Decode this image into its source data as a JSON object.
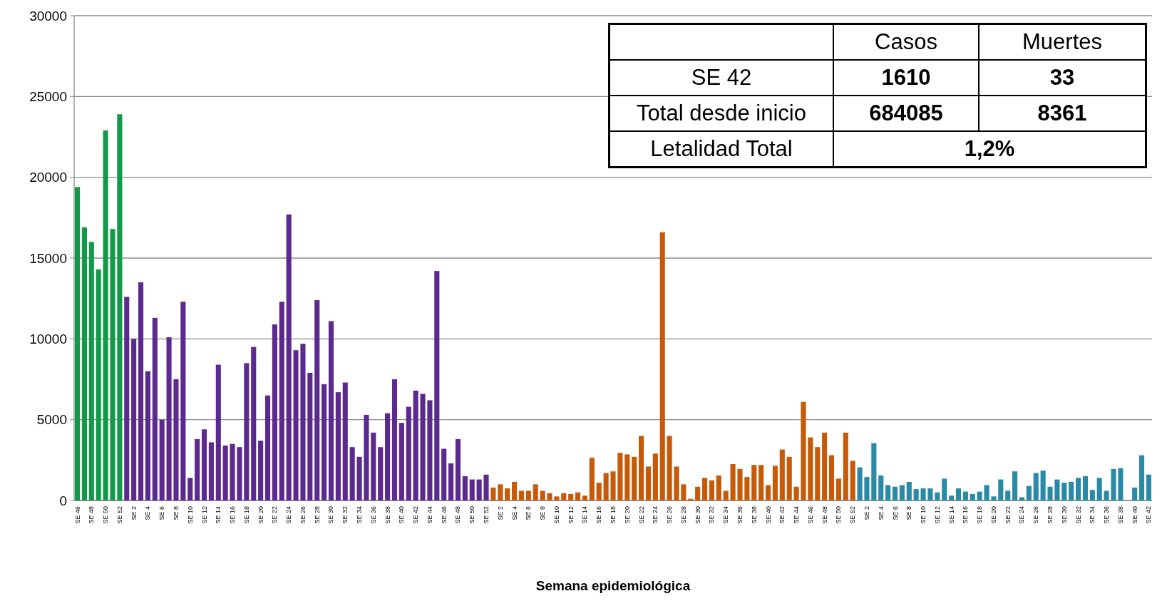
{
  "chart_data": {
    "type": "bar",
    "xlabel": "Semana epidemiológica",
    "annotations": [
      "Casos",
      "Muertes",
      "SE 42",
      "1610",
      "33",
      "Total desde inicio",
      "684085",
      "8361",
      "Letalidad Total",
      "1,2%"
    ],
    "categories": [
      "SE 46",
      null,
      "SE 48",
      null,
      "SE 50",
      null,
      "SE 52",
      null,
      "SE 2",
      null,
      "SE 4",
      null,
      "SE 6",
      null,
      "SE 8",
      null,
      "SE 10",
      null,
      "SE 12",
      null,
      "SE 14",
      null,
      "SE 16",
      null,
      "SE 18",
      null,
      "SE 20",
      null,
      "SE 22",
      null,
      "SE 24",
      null,
      "SE 26",
      null,
      "SE 28",
      null,
      "SE 30",
      null,
      "SE 32",
      null,
      "SE 34",
      null,
      "SE 36",
      null,
      "SE 38",
      null,
      "SE 40",
      null,
      "SE 42",
      null,
      "SE 44",
      null,
      "SE 46",
      null,
      "SE 48",
      null,
      "SE 50",
      null,
      "SE 52",
      null,
      "SE 2",
      null,
      "SE 4",
      null,
      "SE 6",
      null,
      "SE 8",
      null,
      "SE 10",
      null,
      "SE 12",
      null,
      "SE 14",
      null,
      "SE 16",
      null,
      "SE 18",
      null,
      "SE 20",
      null,
      "SE 22",
      null,
      "SE 24",
      null,
      "SE 26",
      null,
      "SE 28",
      null,
      "SE 30",
      null,
      "SE 32",
      null,
      "SE 34",
      null,
      "SE 36",
      null,
      "SE 38",
      null,
      "SE 40",
      null,
      "SE 42",
      null,
      "SE 44",
      null,
      "SE 46",
      null,
      "SE 48",
      null,
      "SE 50",
      null,
      "SE 52",
      null,
      "SE 2",
      null,
      "SE 4",
      null,
      "SE 6",
      null,
      "SE 8",
      null,
      "SE 10",
      null,
      "SE 12",
      null,
      "SE 14",
      null,
      "SE 16",
      null,
      "SE 18",
      null,
      "SE 20",
      null,
      "SE 22",
      null,
      "SE 24",
      null,
      "SE 26",
      null,
      "SE 28",
      null,
      "SE 30",
      null,
      "SE 32",
      null,
      "SE 34",
      null,
      "SE 36",
      null,
      "SE 38",
      null,
      "SE 40",
      null,
      "SE 42"
    ],
    "values": [
      19400,
      16900,
      16000,
      14300,
      22900,
      16800,
      23900,
      12600,
      10000,
      13500,
      8000,
      11300,
      5000,
      10100,
      7500,
      12300,
      1400,
      3800,
      4400,
      3600,
      8400,
      3400,
      3500,
      3300,
      8500,
      9500,
      3700,
      6500,
      10900,
      12300,
      17700,
      9300,
      9700,
      7900,
      12400,
      7200,
      11100,
      6700,
      7300,
      3300,
      2700,
      5300,
      4200,
      3300,
      5400,
      7500,
      4800,
      5800,
      6800,
      6600,
      6200,
      14200,
      3200,
      2300,
      3800,
      1500,
      1300,
      1300,
      1600,
      800,
      1000,
      750,
      1150,
      600,
      600,
      1000,
      600,
      450,
      250,
      450,
      400,
      500,
      300,
      2650,
      1100,
      1700,
      1800,
      2950,
      2850,
      2700,
      4000,
      2100,
      2900,
      16600,
      4000,
      2100,
      1000,
      100,
      850,
      1400,
      1250,
      1550,
      600,
      2250,
      1950,
      1450,
      2200,
      2200,
      950,
      2150,
      3150,
      2700,
      850,
      6100,
      3900,
      3300,
      4200,
      2800,
      1350,
      4200,
      2450,
      2050,
      1450,
      3550,
      1550,
      950,
      850,
      950,
      1150,
      700,
      750,
      750,
      500,
      1350,
      300,
      750,
      550,
      400,
      550,
      950,
      250,
      1300,
      600,
      1800,
      200,
      900,
      1700,
      1850,
      850,
      1300,
      1100,
      1150,
      1400,
      1500,
      650,
      1400,
      600,
      1950,
      2000,
      null,
      800,
      2800,
      1600
    ],
    "colors": [
      "#129a4a",
      "#129a4a",
      "#129a4a",
      "#129a4a",
      "#129a4a",
      "#129a4a",
      "#129a4a",
      "#5c2a8e",
      "#5c2a8e",
      "#5c2a8e",
      "#5c2a8e",
      "#5c2a8e",
      "#5c2a8e",
      "#5c2a8e",
      "#5c2a8e",
      "#5c2a8e",
      "#5c2a8e",
      "#5c2a8e",
      "#5c2a8e",
      "#5c2a8e",
      "#5c2a8e",
      "#5c2a8e",
      "#5c2a8e",
      "#5c2a8e",
      "#5c2a8e",
      "#5c2a8e",
      "#5c2a8e",
      "#5c2a8e",
      "#5c2a8e",
      "#5c2a8e",
      "#5c2a8e",
      "#5c2a8e",
      "#5c2a8e",
      "#5c2a8e",
      "#5c2a8e",
      "#5c2a8e",
      "#5c2a8e",
      "#5c2a8e",
      "#5c2a8e",
      "#5c2a8e",
      "#5c2a8e",
      "#5c2a8e",
      "#5c2a8e",
      "#5c2a8e",
      "#5c2a8e",
      "#5c2a8e",
      "#5c2a8e",
      "#5c2a8e",
      "#5c2a8e",
      "#5c2a8e",
      "#5c2a8e",
      "#5c2a8e",
      "#5c2a8e",
      "#5c2a8e",
      "#5c2a8e",
      "#5c2a8e",
      "#5c2a8e",
      "#5c2a8e",
      "#5c2a8e",
      "#c65a08",
      "#c65a08",
      "#c65a08",
      "#c65a08",
      "#c65a08",
      "#c65a08",
      "#c65a08",
      "#c65a08",
      "#c65a08",
      "#c65a08",
      "#c65a08",
      "#c65a08",
      "#c65a08",
      "#c65a08",
      "#c65a08",
      "#c65a08",
      "#c65a08",
      "#c65a08",
      "#c65a08",
      "#c65a08",
      "#c65a08",
      "#c65a08",
      "#c65a08",
      "#c65a08",
      "#c65a08",
      "#c65a08",
      "#c65a08",
      "#c65a08",
      "#c65a08",
      "#c65a08",
      "#c65a08",
      "#c65a08",
      "#c65a08",
      "#c65a08",
      "#c65a08",
      "#c65a08",
      "#c65a08",
      "#c65a08",
      "#c65a08",
      "#c65a08",
      "#c65a08",
      "#c65a08",
      "#c65a08",
      "#c65a08",
      "#c65a08",
      "#c65a08",
      "#c65a08",
      "#c65a08",
      "#c65a08",
      "#c65a08",
      "#c65a08",
      "#c65a08",
      "#2a8aa6",
      "#2a8aa6",
      "#2a8aa6",
      "#2a8aa6",
      "#2a8aa6",
      "#2a8aa6",
      "#2a8aa6",
      "#2a8aa6",
      "#2a8aa6",
      "#2a8aa6",
      "#2a8aa6",
      "#2a8aa6",
      "#2a8aa6",
      "#2a8aa6",
      "#2a8aa6",
      "#2a8aa6",
      "#2a8aa6",
      "#2a8aa6",
      "#2a8aa6",
      "#2a8aa6",
      "#2a8aa6",
      "#2a8aa6",
      "#2a8aa6",
      "#2a8aa6",
      "#2a8aa6",
      "#2a8aa6",
      "#2a8aa6",
      "#2a8aa6",
      "#2a8aa6",
      "#2a8aa6",
      "#2a8aa6",
      "#2a8aa6",
      "#2a8aa6",
      "#2a8aa6",
      "#2a8aa6",
      "#2a8aa6",
      "#2a8aa6",
      "#2a8aa6",
      "#2a8aa6",
      "#2a8aa6",
      "#2a8aa6",
      "#2a8aa6"
    ],
    "ylim": [
      0,
      30000
    ],
    "yticks": [
      0,
      5000,
      10000,
      15000,
      20000,
      25000,
      30000
    ],
    "grid": "y"
  }
}
